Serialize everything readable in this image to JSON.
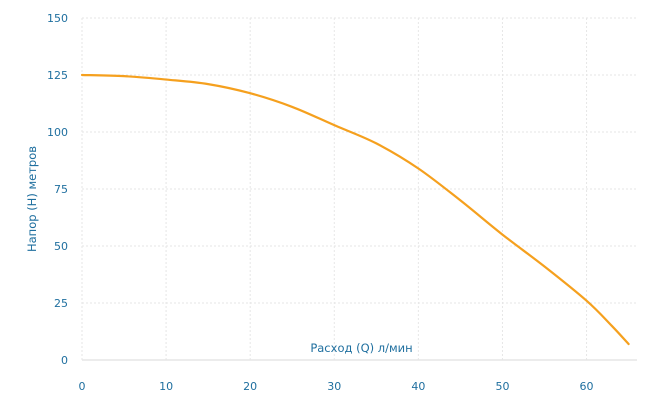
{
  "chart_data": {
    "type": "line",
    "title": "",
    "xlabel": "Расход (Q) л/мин",
    "ylabel": "Напор (H) метров",
    "xlim": [
      0,
      66
    ],
    "ylim": [
      0,
      150
    ],
    "x_ticks": [
      0,
      10,
      20,
      30,
      40,
      50,
      60
    ],
    "y_ticks": [
      0,
      25,
      50,
      75,
      100,
      125,
      150
    ],
    "grid": true,
    "legend": "none",
    "colors": {
      "series": "#f5a01e",
      "text": "#1f6f9f",
      "grid": "#e6e6e6"
    },
    "series": [
      {
        "x": [
          0,
          5,
          10,
          15,
          20,
          25,
          30,
          35,
          40,
          45,
          50,
          55,
          60,
          63,
          65
        ],
        "y": [
          125,
          124.5,
          123,
          121,
          117,
          111,
          103,
          95,
          84,
          70,
          55,
          41,
          26,
          15,
          7
        ]
      }
    ]
  }
}
